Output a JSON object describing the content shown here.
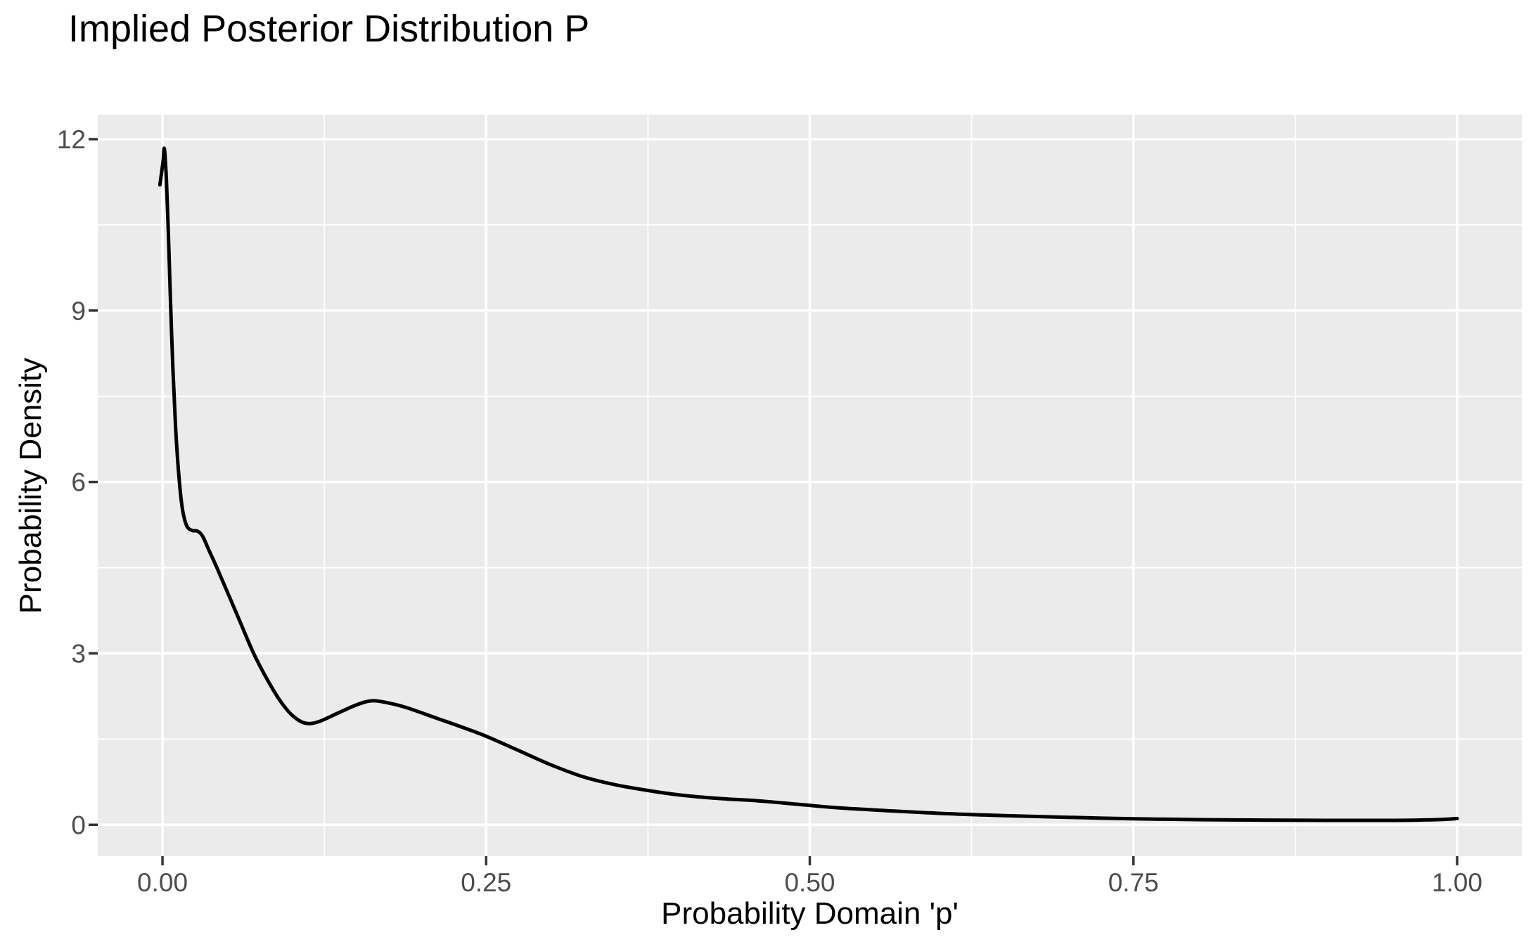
{
  "figure": {
    "background": "#FFFFFF"
  },
  "chart_data": {
    "type": "line",
    "subtype": "density-curve",
    "title": "Implied Posterior Distribution P",
    "xlabel": "Probability Domain 'p'",
    "ylabel": "Probability Density",
    "xlim": [
      -0.05,
      1.05
    ],
    "ylim": [
      -0.55,
      12.43
    ],
    "grid": true,
    "legend": false,
    "x_ticks": {
      "values": [
        0,
        0.25,
        0.5,
        0.75,
        1.0
      ],
      "labels": [
        "0.00",
        "0.25",
        "0.50",
        "0.75",
        "1.00"
      ]
    },
    "y_ticks": {
      "values": [
        0,
        3,
        6,
        9,
        12
      ],
      "labels": [
        "0",
        "3",
        "6",
        "9",
        "12"
      ]
    },
    "x_minor_gridlines": [
      0.125,
      0.375,
      0.625,
      0.875
    ],
    "y_minor_gridlines": [
      1.5,
      4.5,
      7.5,
      10.5
    ],
    "style": {
      "panel_bg": "#EBEBEB",
      "grid_color": "#FFFFFF",
      "axis_text_color": "#4D4D4D",
      "tick_mark_color": "#333333",
      "label_color": "#000000",
      "line_color": "#000000"
    },
    "series": [
      {
        "name": "posterior density",
        "color": "#000000",
        "points": [
          [
            -0.002,
            11.2
          ],
          [
            0.0005,
            11.62
          ],
          [
            0.0015,
            11.83
          ],
          [
            0.003,
            11.3
          ],
          [
            0.0045,
            10.4
          ],
          [
            0.006,
            9.3
          ],
          [
            0.008,
            8.0
          ],
          [
            0.01,
            7.0
          ],
          [
            0.012,
            6.3
          ],
          [
            0.014,
            5.78
          ],
          [
            0.016,
            5.45
          ],
          [
            0.019,
            5.22
          ],
          [
            0.023,
            5.15
          ],
          [
            0.027,
            5.14
          ],
          [
            0.031,
            5.05
          ],
          [
            0.036,
            4.8
          ],
          [
            0.042,
            4.5
          ],
          [
            0.05,
            4.08
          ],
          [
            0.06,
            3.55
          ],
          [
            0.07,
            3.02
          ],
          [
            0.08,
            2.58
          ],
          [
            0.09,
            2.2
          ],
          [
            0.1,
            1.92
          ],
          [
            0.11,
            1.78
          ],
          [
            0.12,
            1.8
          ],
          [
            0.135,
            1.95
          ],
          [
            0.15,
            2.1
          ],
          [
            0.162,
            2.17
          ],
          [
            0.175,
            2.13
          ],
          [
            0.19,
            2.04
          ],
          [
            0.21,
            1.88
          ],
          [
            0.23,
            1.72
          ],
          [
            0.25,
            1.55
          ],
          [
            0.275,
            1.3
          ],
          [
            0.3,
            1.05
          ],
          [
            0.325,
            0.84
          ],
          [
            0.35,
            0.7
          ],
          [
            0.375,
            0.6
          ],
          [
            0.4,
            0.52
          ],
          [
            0.43,
            0.46
          ],
          [
            0.46,
            0.42
          ],
          [
            0.49,
            0.36
          ],
          [
            0.52,
            0.3
          ],
          [
            0.55,
            0.26
          ],
          [
            0.6,
            0.2
          ],
          [
            0.65,
            0.16
          ],
          [
            0.7,
            0.13
          ],
          [
            0.75,
            0.105
          ],
          [
            0.8,
            0.09
          ],
          [
            0.85,
            0.082
          ],
          [
            0.9,
            0.078
          ],
          [
            0.94,
            0.078
          ],
          [
            0.97,
            0.082
          ],
          [
            0.99,
            0.095
          ],
          [
            1.0,
            0.11
          ]
        ]
      }
    ]
  }
}
